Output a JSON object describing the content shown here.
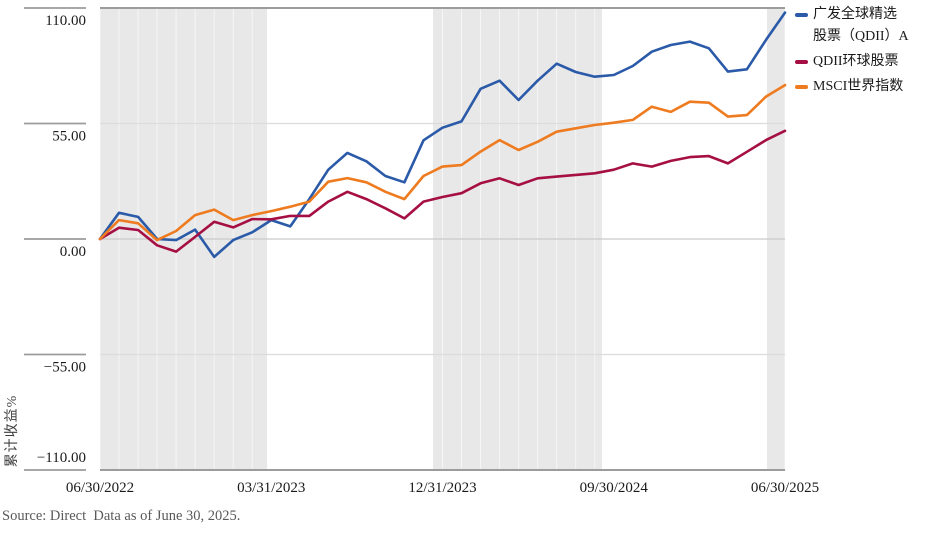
{
  "chart_data": {
    "type": "line",
    "title": "",
    "ylabel": "累计收益%",
    "ylim": [
      -110,
      110
    ],
    "grid": "horizontal",
    "legend_position": "top-right",
    "x": [
      "2022-06",
      "2022-07",
      "2022-08",
      "2022-09",
      "2022-10",
      "2022-11",
      "2022-12",
      "2023-01",
      "2023-02",
      "2023-03",
      "2023-04",
      "2023-05",
      "2023-06",
      "2023-07",
      "2023-08",
      "2023-09",
      "2023-10",
      "2023-11",
      "2023-12",
      "2024-01",
      "2024-02",
      "2024-03",
      "2024-04",
      "2024-05",
      "2024-06",
      "2024-07",
      "2024-08",
      "2024-09",
      "2024-10",
      "2024-11",
      "2024-12",
      "2025-01",
      "2025-02",
      "2025-03",
      "2025-04",
      "2025-05",
      "2025-06"
    ],
    "series": [
      {
        "name": "广发全球精选股票（QDII）A",
        "color": "#2a5aa8",
        "values": [
          0,
          12.5,
          10.5,
          0,
          -0.5,
          4.5,
          -8.5,
          -0.5,
          3.2,
          9,
          6,
          19,
          33,
          41,
          37,
          30,
          27,
          47,
          53,
          56,
          71.5,
          75.4,
          66.2,
          75.4,
          83.5,
          79.5,
          77.3,
          78.1,
          82.4,
          89.2,
          92.4,
          94,
          90.8,
          79.7,
          80.8,
          94.8,
          107.8
        ]
      },
      {
        "name": "QDII环球股票",
        "color": "#a60f44",
        "values": [
          0,
          5.4,
          4.3,
          -3,
          -6,
          1,
          8.2,
          5.5,
          9.5,
          9.4,
          11,
          11,
          17.8,
          22.5,
          19,
          14.6,
          9.8,
          17.8,
          20,
          21.8,
          26.5,
          28.9,
          25.7,
          28.9,
          29.7,
          30.5,
          31.3,
          33,
          36,
          34.5,
          37.2,
          39,
          39.5,
          36,
          41.5,
          47.1,
          51.5
        ]
      },
      {
        "name": "MSCI世界指数",
        "color": "#ee7b1f",
        "values": [
          0,
          9,
          7.5,
          -0.5,
          3.8,
          11.4,
          14,
          9,
          11.4,
          13.3,
          15.4,
          17.8,
          27.3,
          29,
          27,
          22.5,
          19,
          30,
          34.5,
          35.2,
          41.6,
          47.1,
          42.4,
          46.3,
          51.1,
          52.7,
          54.3,
          55.4,
          56.7,
          63,
          60.5,
          65.4,
          64.9,
          58.3,
          59,
          67.8,
          73.3
        ]
      }
    ],
    "y_ticks": [
      {
        "value": 110,
        "label": "110.00"
      },
      {
        "value": 55,
        "label": "55.00"
      },
      {
        "value": 0,
        "label": "0.00"
      },
      {
        "value": -55,
        "label": "−55.00"
      },
      {
        "value": -110,
        "label": "−110.00"
      }
    ],
    "x_ticks": [
      {
        "pos": 0,
        "label": "06/30/2022"
      },
      {
        "pos": 9,
        "label": "03/31/2023"
      },
      {
        "pos": 18,
        "label": "12/31/2023"
      },
      {
        "pos": 27,
        "label": "09/30/2024"
      },
      {
        "pos": 36,
        "label": "06/30/2025"
      }
    ],
    "shaded_bands": [
      [
        0,
        8.78
      ],
      [
        17.5,
        26.38
      ],
      [
        35.05,
        36
      ]
    ],
    "colors": {
      "band": "#e8e8e8",
      "band_stripe": "rgba(255,255,255,0.6)",
      "gridline": "#dcdcdc",
      "zero_line": "#c9c9c9",
      "axis_border": "#9c9c9c",
      "tick_text": "#1a1a1a"
    }
  },
  "footer": {
    "source_text": "Source: Direct  Data as of June 30, 2025."
  }
}
